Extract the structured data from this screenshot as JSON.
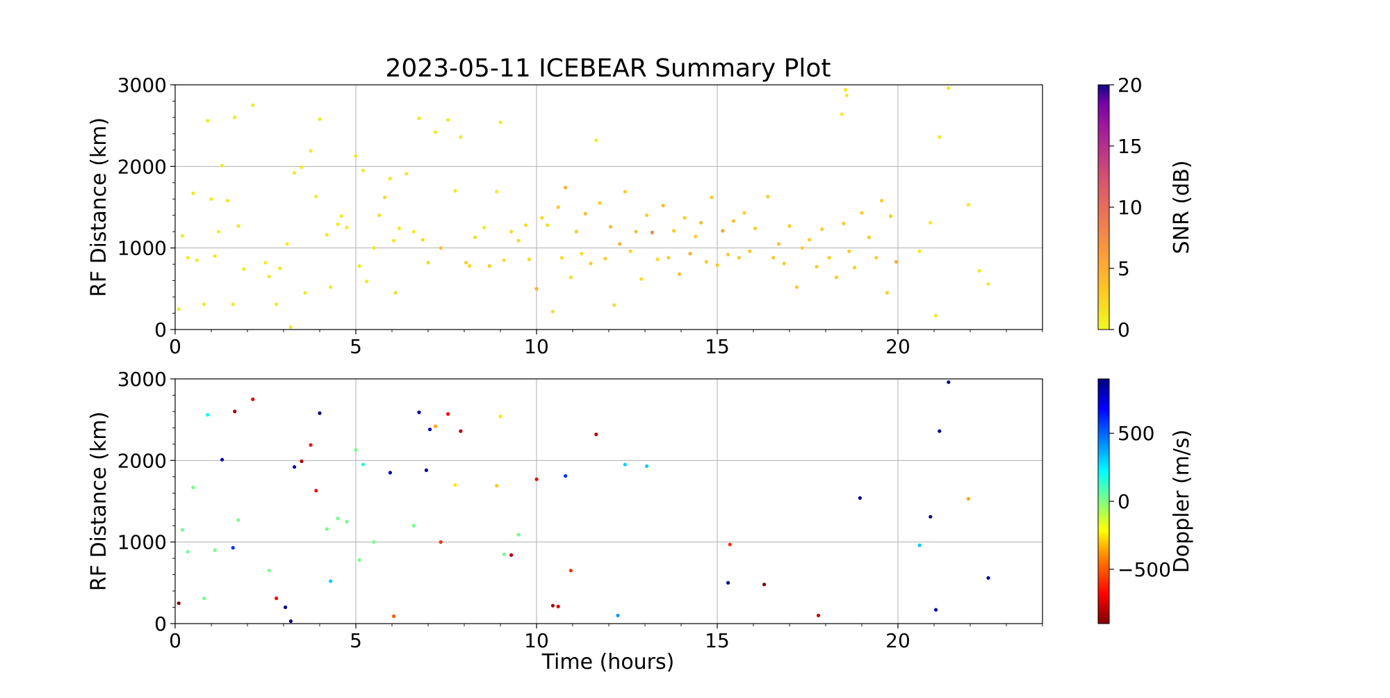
{
  "figure": {
    "title": "2023-05-11 ICEBEAR Summary Plot",
    "xlabel": "Time (hours)"
  },
  "chart_data": [
    {
      "type": "scatter",
      "id": "snr_panel",
      "ylabel": "RF Distance (km)",
      "xlim": [
        0,
        24
      ],
      "ylim": [
        0,
        3000
      ],
      "xticks": [
        "0",
        "5",
        "10",
        "15",
        "20"
      ],
      "xtick_values": [
        0,
        5,
        10,
        15,
        20
      ],
      "yticks": [
        "0",
        "1000",
        "2000",
        "3000"
      ],
      "ytick_values": [
        0,
        1000,
        2000,
        3000
      ],
      "grid": true,
      "colorbar": {
        "label": "SNR (dB)",
        "range": [
          0,
          20
        ],
        "ticks": [
          "0",
          "5",
          "10",
          "15",
          "20"
        ],
        "tick_values": [
          0,
          5,
          10,
          15,
          20
        ],
        "colormap": "plasma_r"
      },
      "series": [
        {
          "points": [
            [
              0.1,
              250,
              1
            ],
            [
              0.2,
              1150,
              1
            ],
            [
              0.35,
              880,
              1
            ],
            [
              0.5,
              1670,
              1
            ],
            [
              0.6,
              850,
              1
            ],
            [
              0.8,
              310,
              1
            ],
            [
              0.9,
              2560,
              1
            ],
            [
              1.0,
              1600,
              1
            ],
            [
              1.1,
              900,
              1
            ],
            [
              1.2,
              1200,
              1
            ],
            [
              1.3,
              2010,
              1
            ],
            [
              1.45,
              1580,
              1
            ],
            [
              1.6,
              310,
              1
            ],
            [
              1.65,
              2600,
              1
            ],
            [
              1.75,
              1270,
              1
            ],
            [
              1.9,
              740,
              1
            ],
            [
              2.15,
              2750,
              1
            ],
            [
              2.5,
              820,
              1
            ],
            [
              2.6,
              650,
              1
            ],
            [
              2.8,
              310,
              1
            ],
            [
              2.9,
              750,
              1
            ],
            [
              3.1,
              1050,
              1
            ],
            [
              3.2,
              30,
              1
            ],
            [
              3.3,
              1920,
              1
            ],
            [
              3.5,
              1990,
              1
            ],
            [
              3.6,
              450,
              1
            ],
            [
              3.75,
              2190,
              1
            ],
            [
              3.9,
              1630,
              1
            ],
            [
              4.0,
              2580,
              1
            ],
            [
              4.2,
              1160,
              1
            ],
            [
              4.3,
              520,
              1
            ],
            [
              4.5,
              1290,
              1
            ],
            [
              4.6,
              1390,
              1
            ],
            [
              4.75,
              1250,
              1
            ],
            [
              5.0,
              2130,
              1
            ],
            [
              5.1,
              780,
              1
            ],
            [
              5.2,
              1950,
              1
            ],
            [
              5.3,
              590,
              1
            ],
            [
              5.5,
              1000,
              1
            ],
            [
              5.65,
              1400,
              2
            ],
            [
              5.8,
              1620,
              2
            ],
            [
              5.95,
              1850,
              1
            ],
            [
              6.05,
              1090,
              1
            ],
            [
              6.1,
              450,
              2
            ],
            [
              6.2,
              1240,
              1
            ],
            [
              6.4,
              1910,
              1
            ],
            [
              6.6,
              1200,
              1
            ],
            [
              6.75,
              2590,
              1
            ],
            [
              6.85,
              1100,
              2
            ],
            [
              7.0,
              820,
              2
            ],
            [
              7.2,
              2420,
              1
            ],
            [
              7.35,
              1000,
              4
            ],
            [
              7.55,
              2570,
              1
            ],
            [
              7.75,
              1700,
              1
            ],
            [
              7.9,
              2360,
              1
            ],
            [
              8.05,
              820,
              3
            ],
            [
              8.15,
              780,
              2
            ],
            [
              8.3,
              1130,
              2
            ],
            [
              8.55,
              1250,
              1
            ],
            [
              8.7,
              780,
              3
            ],
            [
              8.9,
              1690,
              1
            ],
            [
              9.0,
              2540,
              1
            ],
            [
              9.1,
              850,
              2
            ],
            [
              9.3,
              1200,
              2
            ],
            [
              9.5,
              1090,
              2
            ],
            [
              9.7,
              1280,
              2
            ],
            [
              9.8,
              860,
              2
            ],
            [
              10.0,
              500,
              5
            ],
            [
              10.15,
              1370,
              2
            ],
            [
              10.3,
              1280,
              2
            ],
            [
              10.45,
              220,
              2
            ],
            [
              10.6,
              1500,
              3
            ],
            [
              10.7,
              880,
              2
            ],
            [
              10.8,
              1740,
              5
            ],
            [
              10.95,
              640,
              2
            ],
            [
              11.1,
              1200,
              3
            ],
            [
              11.25,
              930,
              2
            ],
            [
              11.35,
              1420,
              4
            ],
            [
              11.5,
              810,
              3
            ],
            [
              11.65,
              2320,
              1
            ],
            [
              11.75,
              1550,
              3
            ],
            [
              11.9,
              870,
              3
            ],
            [
              12.05,
              1260,
              4
            ],
            [
              12.15,
              300,
              2
            ],
            [
              12.3,
              1050,
              5
            ],
            [
              12.45,
              1690,
              3
            ],
            [
              12.6,
              960,
              2
            ],
            [
              12.75,
              1200,
              4
            ],
            [
              12.9,
              620,
              2
            ],
            [
              13.05,
              1400,
              3
            ],
            [
              13.2,
              1190,
              8
            ],
            [
              13.35,
              860,
              2
            ],
            [
              13.5,
              1520,
              4
            ],
            [
              13.65,
              880,
              3
            ],
            [
              13.8,
              1210,
              3
            ],
            [
              13.95,
              680,
              4
            ],
            [
              14.1,
              1370,
              3
            ],
            [
              14.25,
              930,
              5
            ],
            [
              14.4,
              1140,
              3
            ],
            [
              14.55,
              1310,
              4
            ],
            [
              14.7,
              830,
              3
            ],
            [
              14.85,
              1620,
              3
            ],
            [
              15.0,
              790,
              3
            ],
            [
              15.15,
              1210,
              6
            ],
            [
              15.3,
              920,
              3
            ],
            [
              15.45,
              1330,
              4
            ],
            [
              15.6,
              880,
              3
            ],
            [
              15.75,
              1430,
              3
            ],
            [
              15.9,
              960,
              3
            ],
            [
              16.05,
              1240,
              3
            ],
            [
              16.4,
              1630,
              3
            ],
            [
              16.55,
              880,
              3
            ],
            [
              16.7,
              1050,
              4
            ],
            [
              16.85,
              810,
              3
            ],
            [
              17.0,
              1270,
              3
            ],
            [
              17.2,
              520,
              3
            ],
            [
              17.35,
              1000,
              3
            ],
            [
              17.55,
              1100,
              3
            ],
            [
              17.75,
              770,
              3
            ],
            [
              17.9,
              1230,
              3
            ],
            [
              18.1,
              880,
              3
            ],
            [
              18.3,
              640,
              3
            ],
            [
              18.5,
              1300,
              3
            ],
            [
              18.65,
              960,
              3
            ],
            [
              18.8,
              760,
              3
            ],
            [
              19.0,
              1430,
              3
            ],
            [
              19.2,
              1130,
              3
            ],
            [
              19.4,
              880,
              3
            ],
            [
              19.55,
              1580,
              3
            ],
            [
              19.7,
              450,
              3
            ],
            [
              19.8,
              1390,
              3
            ],
            [
              19.95,
              830,
              5
            ],
            [
              20.6,
              960,
              1
            ],
            [
              20.9,
              1310,
              1
            ],
            [
              21.05,
              170,
              1
            ],
            [
              21.15,
              2360,
              1
            ],
            [
              21.4,
              2960,
              1
            ],
            [
              21.95,
              1530,
              1
            ],
            [
              22.25,
              720,
              1
            ],
            [
              22.5,
              560,
              1
            ],
            [
              18.45,
              2640,
              1
            ],
            [
              18.55,
              2940,
              1
            ],
            [
              18.58,
              2870,
              1
            ]
          ]
        }
      ]
    },
    {
      "type": "scatter",
      "id": "doppler_panel",
      "ylabel": "RF Distance (km)",
      "xlabel": "Time (hours)",
      "xlim": [
        0,
        24
      ],
      "ylim": [
        0,
        3000
      ],
      "xticks": [
        "0",
        "5",
        "10",
        "15",
        "20"
      ],
      "xtick_values": [
        0,
        5,
        10,
        15,
        20
      ],
      "yticks": [
        "0",
        "1000",
        "2000",
        "3000"
      ],
      "ytick_values": [
        0,
        1000,
        2000,
        3000
      ],
      "grid": true,
      "colorbar": {
        "label": "Doppler (m/s)",
        "range": [
          -900,
          900
        ],
        "ticks": [
          "−500",
          "0",
          "500"
        ],
        "tick_values": [
          -500,
          0,
          500
        ],
        "colormap": "jet_r"
      },
      "series": [
        {
          "points": [
            [
              0.1,
              250,
              -900
            ],
            [
              0.2,
              1150,
              20
            ],
            [
              0.35,
              880,
              30
            ],
            [
              0.5,
              1670,
              20
            ],
            [
              0.8,
              310,
              10
            ],
            [
              0.9,
              2560,
              200
            ],
            [
              1.1,
              900,
              20
            ],
            [
              1.3,
              2010,
              800
            ],
            [
              1.6,
              930,
              600
            ],
            [
              1.65,
              2600,
              -850
            ],
            [
              1.75,
              1270,
              20
            ],
            [
              2.15,
              2750,
              -750
            ],
            [
              2.6,
              650,
              20
            ],
            [
              2.8,
              310,
              -700
            ],
            [
              3.05,
              200,
              850
            ],
            [
              3.2,
              30,
              900
            ],
            [
              3.3,
              1920,
              850
            ],
            [
              3.5,
              1990,
              -800
            ],
            [
              3.75,
              2190,
              -650
            ],
            [
              3.9,
              1630,
              -700
            ],
            [
              4.0,
              2580,
              900
            ],
            [
              4.2,
              1160,
              20
            ],
            [
              4.3,
              520,
              300
            ],
            [
              4.5,
              1290,
              20
            ],
            [
              4.75,
              1250,
              20
            ],
            [
              5.0,
              2130,
              20
            ],
            [
              5.1,
              780,
              20
            ],
            [
              5.2,
              1950,
              150
            ],
            [
              5.5,
              1000,
              20
            ],
            [
              5.95,
              1850,
              800
            ],
            [
              6.05,
              90,
              -500
            ],
            [
              6.6,
              1200,
              20
            ],
            [
              6.75,
              2590,
              850
            ],
            [
              6.95,
              1880,
              850
            ],
            [
              7.05,
              2380,
              800
            ],
            [
              7.2,
              2420,
              -350
            ],
            [
              7.35,
              1000,
              -600
            ],
            [
              7.55,
              2570,
              -700
            ],
            [
              7.75,
              1700,
              -250
            ],
            [
              7.9,
              2360,
              -800
            ],
            [
              8.9,
              1690,
              -300
            ],
            [
              9.0,
              2540,
              -250
            ],
            [
              9.1,
              850,
              30
            ],
            [
              9.3,
              840,
              -800
            ],
            [
              9.5,
              1090,
              20
            ],
            [
              10.0,
              1770,
              -700
            ],
            [
              10.45,
              220,
              -850
            ],
            [
              10.6,
              210,
              -750
            ],
            [
              10.8,
              1810,
              600
            ],
            [
              10.95,
              650,
              -600
            ],
            [
              11.65,
              2320,
              -800
            ],
            [
              12.25,
              100,
              400
            ],
            [
              13.05,
              1930,
              300
            ],
            [
              12.45,
              1950,
              300
            ],
            [
              15.3,
              500,
              900
            ],
            [
              15.35,
              970,
              -600
            ],
            [
              16.3,
              480,
              -900
            ],
            [
              17.8,
              100,
              -800
            ],
            [
              18.95,
              1540,
              900
            ],
            [
              20.6,
              960,
              300
            ],
            [
              20.9,
              1310,
              900
            ],
            [
              21.05,
              170,
              850
            ],
            [
              21.15,
              2360,
              900
            ],
            [
              21.4,
              2960,
              900
            ],
            [
              21.95,
              1530,
              -350
            ],
            [
              22.5,
              560,
              850
            ]
          ]
        }
      ]
    }
  ]
}
